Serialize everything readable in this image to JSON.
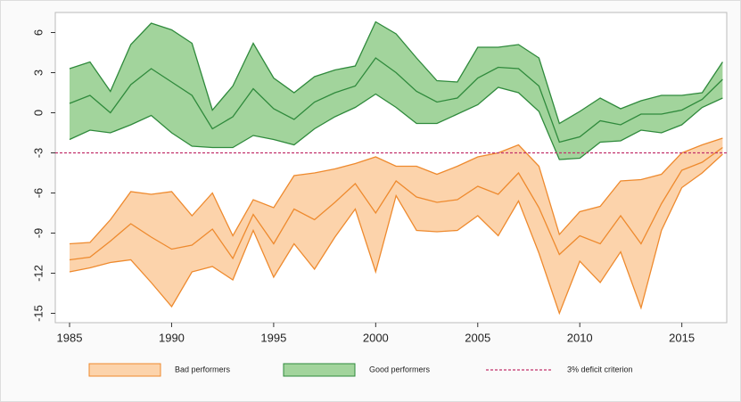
{
  "chart_data": {
    "type": "band",
    "x": [
      1985,
      1986,
      1987,
      1988,
      1989,
      1990,
      1991,
      1992,
      1993,
      1994,
      1995,
      1996,
      1997,
      1998,
      1999,
      2000,
      2001,
      2002,
      2003,
      2004,
      2005,
      2006,
      2007,
      2008,
      2009,
      2010,
      2011,
      2012,
      2013,
      2014,
      2015,
      2016,
      2017
    ],
    "xlim": [
      1984.3,
      2017.2
    ],
    "xticks": [
      1985,
      1990,
      1995,
      2000,
      2005,
      2010,
      2015
    ],
    "ylim": [
      -15.7,
      7.5
    ],
    "yticks": [
      6,
      3,
      0,
      -3,
      -6,
      -9,
      -12,
      -15
    ],
    "series": [
      {
        "name": "Bad performers",
        "color": "#ee8a2e",
        "fill": "#fcd3ab",
        "upper": [
          -9.8,
          -9.7,
          -8.0,
          -5.9,
          -6.1,
          -5.9,
          -7.7,
          -6.0,
          -9.2,
          -6.5,
          -7.1,
          -4.7,
          -4.5,
          -4.2,
          -3.8,
          -3.3,
          -4.0,
          -4.0,
          -4.6,
          -4.0,
          -3.3,
          -3.0,
          -2.4,
          -4.0,
          -9.1,
          -7.4,
          -7.0,
          -5.1,
          -5.0,
          -4.6,
          -3.0,
          -2.4,
          -1.9
        ],
        "values": [
          -11.0,
          -10.8,
          -9.6,
          -8.3,
          -9.3,
          -10.2,
          -9.9,
          -8.7,
          -10.9,
          -7.6,
          -9.8,
          -7.2,
          -8.0,
          -6.7,
          -5.3,
          -7.5,
          -5.1,
          -6.3,
          -6.7,
          -6.5,
          -5.5,
          -6.1,
          -4.5,
          -7.1,
          -10.6,
          -9.2,
          -9.8,
          -7.7,
          -9.8,
          -6.8,
          -4.3,
          -3.7,
          -2.6
        ],
        "lower": [
          -11.9,
          -11.6,
          -11.2,
          -11.0,
          -12.7,
          -14.5,
          -11.9,
          -11.5,
          -12.5,
          -8.8,
          -12.3,
          -9.8,
          -11.7,
          -9.3,
          -7.2,
          -11.9,
          -6.2,
          -8.8,
          -8.9,
          -8.8,
          -7.7,
          -9.2,
          -6.6,
          -10.5,
          -15.0,
          -11.1,
          -12.7,
          -10.4,
          -14.6,
          -8.8,
          -5.6,
          -4.5,
          -3.1
        ]
      },
      {
        "name": "Good performers",
        "color": "#2f8a3c",
        "fill": "#a2d49c",
        "upper": [
          3.3,
          3.8,
          1.6,
          5.1,
          6.7,
          6.2,
          5.2,
          0.2,
          2.0,
          5.2,
          2.6,
          1.5,
          2.7,
          3.2,
          3.5,
          6.8,
          5.9,
          4.1,
          2.4,
          2.3,
          4.9,
          4.9,
          5.1,
          4.1,
          -0.8,
          0.1,
          1.1,
          0.3,
          0.9,
          1.3,
          1.3,
          1.5,
          3.8
        ],
        "values": [
          0.7,
          1.3,
          0.0,
          2.1,
          3.3,
          2.3,
          1.3,
          -1.2,
          -0.3,
          1.8,
          0.3,
          -0.5,
          0.8,
          1.5,
          2.0,
          4.1,
          3.0,
          1.6,
          0.8,
          1.1,
          2.6,
          3.4,
          3.3,
          2.0,
          -2.2,
          -1.8,
          -0.6,
          -0.9,
          -0.1,
          -0.1,
          0.2,
          1.0,
          2.5
        ],
        "lower": [
          -2.0,
          -1.3,
          -1.5,
          -0.9,
          -0.2,
          -1.5,
          -2.5,
          -2.6,
          -2.6,
          -1.7,
          -2.0,
          -2.4,
          -1.2,
          -0.3,
          0.4,
          1.4,
          0.4,
          -0.8,
          -0.8,
          -0.1,
          0.6,
          1.9,
          1.5,
          0.1,
          -3.5,
          -3.4,
          -2.2,
          -2.1,
          -1.3,
          -1.5,
          -0.9,
          0.4,
          1.1
        ]
      }
    ],
    "reference_line": {
      "name": "3% deficit criterion",
      "value": -3,
      "color": "#c2306b"
    }
  }
}
